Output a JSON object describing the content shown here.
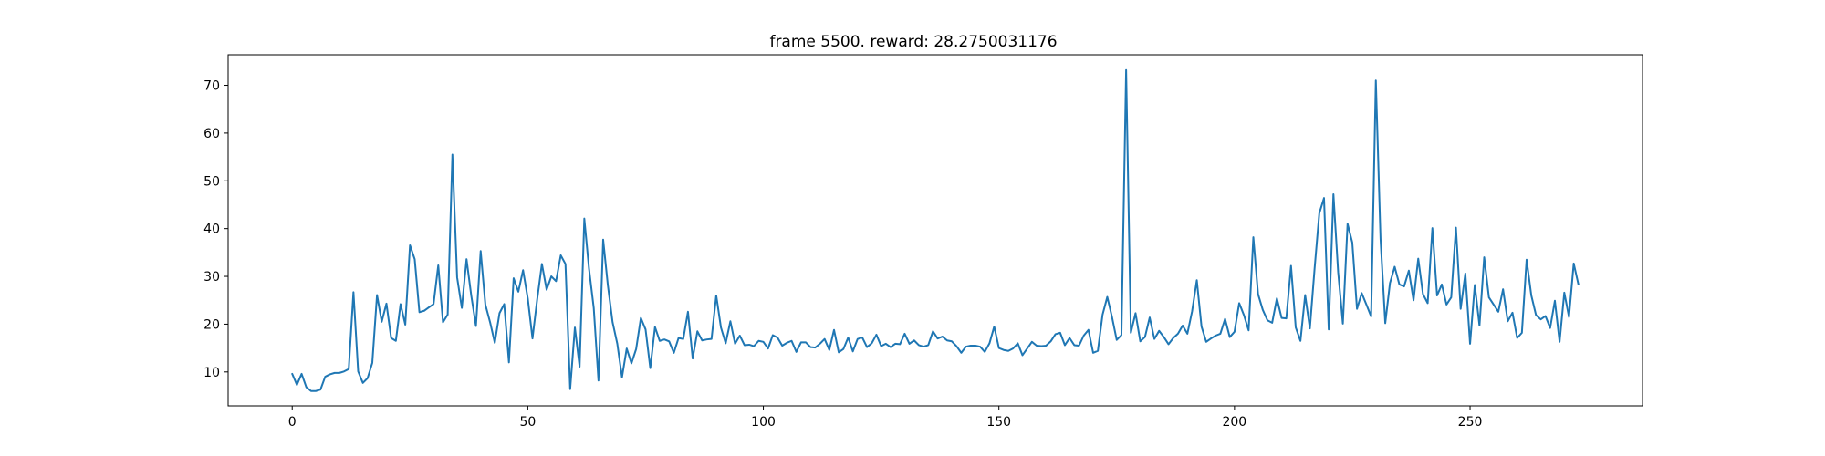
{
  "chart_data": {
    "type": "line",
    "title": "frame 5500. reward: 28.2750031176",
    "xlabel": "",
    "ylabel": "",
    "xlim": [
      -13.6,
      286.6
    ],
    "ylim": [
      2.9,
      76.4
    ],
    "xticks": [
      0,
      50,
      100,
      150,
      200,
      250
    ],
    "yticks": [
      10,
      20,
      30,
      40,
      50,
      60,
      70
    ],
    "grid": false,
    "series": [
      {
        "name": "reward",
        "color": "#1f77b4",
        "values": [
          9.6,
          7.3,
          9.6,
          6.8,
          6.0,
          6.0,
          6.3,
          9.0,
          9.5,
          9.8,
          9.8,
          10.1,
          10.6,
          26.7,
          10.1,
          7.7,
          8.7,
          11.9,
          26.1,
          20.5,
          24.3,
          17.1,
          16.5,
          24.2,
          19.9,
          36.5,
          33.6,
          22.5,
          22.8,
          23.5,
          24.2,
          32.3,
          20.4,
          22.0,
          55.5,
          29.8,
          23.4,
          33.6,
          26.0,
          19.6,
          35.3,
          24.1,
          20.4,
          16.1,
          22.3,
          24.2,
          12.0,
          29.6,
          26.8,
          31.3,
          25.4,
          17.0,
          25.2,
          32.6,
          27.2,
          30.0,
          29.0,
          34.4,
          32.6,
          6.4,
          19.3,
          11.1,
          42.1,
          31.6,
          23.4,
          8.2,
          37.7,
          28.1,
          20.4,
          15.9,
          8.9,
          14.9,
          11.8,
          14.8,
          21.3,
          18.9,
          10.8,
          19.4,
          16.5,
          16.8,
          16.4,
          14.0,
          17.1,
          16.9,
          22.6,
          12.8,
          18.5,
          16.6,
          16.8,
          16.9,
          26.0,
          19.3,
          16.0,
          20.6,
          15.9,
          17.6,
          15.6,
          15.7,
          15.4,
          16.5,
          16.3,
          14.9,
          17.7,
          17.2,
          15.5,
          16.1,
          16.5,
          14.2,
          16.2,
          16.2,
          15.2,
          15.1,
          15.9,
          16.9,
          14.6,
          18.8,
          14.1,
          14.8,
          17.2,
          14.3,
          16.9,
          17.2,
          15.2,
          16.0,
          17.8,
          15.4,
          15.9,
          15.2,
          15.9,
          15.8,
          18.0,
          15.9,
          16.6,
          15.6,
          15.3,
          15.6,
          18.5,
          17.0,
          17.4,
          16.6,
          16.4,
          15.4,
          14.0,
          15.3,
          15.5,
          15.5,
          15.3,
          14.2,
          16.0,
          19.5,
          15.0,
          14.6,
          14.4,
          14.9,
          16.0,
          13.5,
          14.9,
          16.3,
          15.5,
          15.4,
          15.5,
          16.4,
          17.9,
          18.2,
          15.6,
          17.1,
          15.6,
          15.5,
          17.6,
          18.8,
          14.0,
          14.4,
          22.0,
          25.7,
          21.5,
          16.7,
          17.7,
          73.2,
          18.2,
          22.3,
          16.4,
          17.3,
          21.4,
          16.9,
          18.6,
          17.3,
          15.8,
          17.1,
          18.0,
          19.7,
          18.0,
          22.7,
          29.2,
          19.5,
          16.3,
          17.0,
          17.6,
          18.0,
          21.1,
          17.3,
          18.4,
          24.4,
          21.9,
          18.7,
          38.2,
          26.3,
          23.0,
          20.8,
          20.3,
          25.4,
          21.3,
          21.2,
          32.2,
          19.3,
          16.5,
          26.1,
          19.1,
          31.6,
          43.2,
          46.4,
          18.9,
          47.2,
          30.9,
          20.1,
          41.0,
          37.1,
          23.2,
          26.5,
          24.1,
          21.6,
          71.0,
          37.8,
          20.2,
          28.6,
          32.0,
          28.3,
          27.9,
          31.2,
          25.0,
          33.7,
          26.3,
          24.4,
          40.1,
          26.0,
          28.3,
          24.1,
          25.6,
          40.2,
          23.2,
          30.6,
          15.9,
          28.2,
          19.7,
          34.0,
          25.6,
          24.1,
          22.6,
          27.3,
          20.6,
          22.4,
          17.1,
          18.2,
          33.5,
          26.0,
          21.9,
          21.0,
          21.7,
          19.2,
          24.9,
          16.3,
          26.6,
          21.5,
          32.7,
          28.3
        ]
      }
    ]
  }
}
